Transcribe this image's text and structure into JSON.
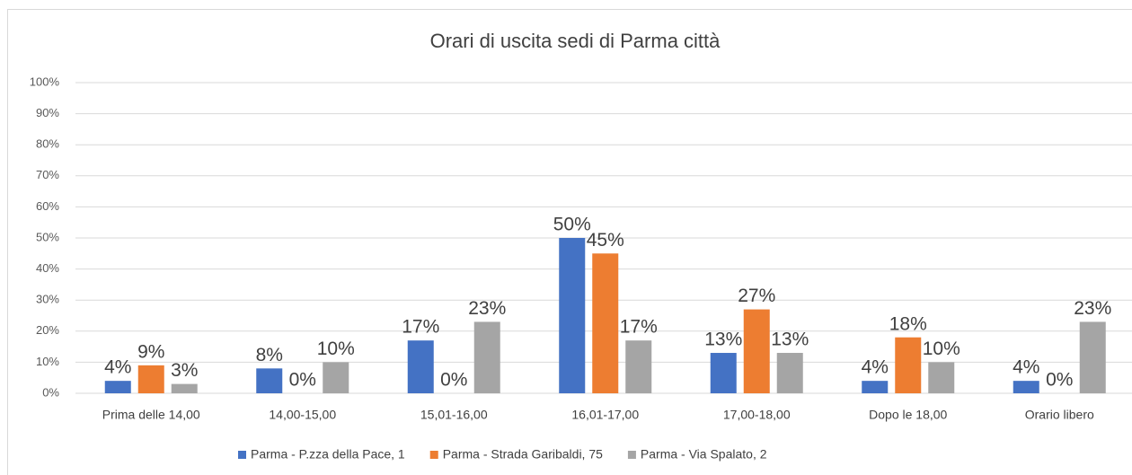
{
  "chart_data": {
    "type": "bar",
    "title": "Orari di uscita sedi di Parma città",
    "categories": [
      "Prima delle 14,00",
      "14,00-15,00",
      "15,01-16,00",
      "16,01-17,00",
      "17,00-18,00",
      "Dopo le 18,00",
      "Orario libero"
    ],
    "series": [
      {
        "name": "Parma - P.zza della Pace, 1",
        "color": "#4472c4",
        "values": [
          4,
          8,
          17,
          50,
          13,
          4,
          4
        ],
        "value_labels": [
          "4%",
          "8%",
          "17%",
          "50%",
          "13%",
          "4%",
          "4%"
        ]
      },
      {
        "name": "Parma - Strada Garibaldi, 75",
        "color": "#ed7d31",
        "values": [
          9,
          0,
          0,
          45,
          27,
          18,
          0
        ],
        "value_labels": [
          "9%",
          "0%",
          "0%",
          "45%",
          "27%",
          "18%",
          "0%"
        ]
      },
      {
        "name": "Parma - Via Spalato, 2",
        "color": "#a5a5a5",
        "values": [
          3,
          10,
          23,
          17,
          13,
          10,
          23
        ],
        "value_labels": [
          "3%",
          "10%",
          "23%",
          "17%",
          "13%",
          "10%",
          "23%"
        ]
      }
    ],
    "ylim": [
      0,
      100
    ],
    "yticks": [
      {
        "value": 0,
        "label": "0%"
      },
      {
        "value": 10,
        "label": "10%"
      },
      {
        "value": 20,
        "label": "20%"
      },
      {
        "value": 30,
        "label": "30%"
      },
      {
        "value": 40,
        "label": "40%"
      },
      {
        "value": 50,
        "label": "50%"
      },
      {
        "value": 60,
        "label": "60%"
      },
      {
        "value": 70,
        "label": "70%"
      },
      {
        "value": 80,
        "label": "80%"
      },
      {
        "value": 90,
        "label": "90%"
      },
      {
        "value": 100,
        "label": "100%"
      }
    ],
    "grid": true,
    "legend": "bottom"
  }
}
